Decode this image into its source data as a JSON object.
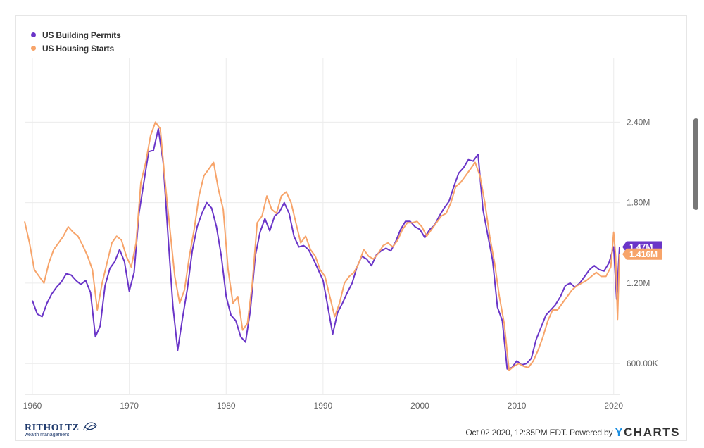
{
  "legend": [
    {
      "label": "US Building Permits",
      "color": "#6a35c8"
    },
    {
      "label": "US Housing Starts",
      "color": "#f7a46a"
    }
  ],
  "badges": [
    {
      "text": "1.47M",
      "value": 1.47,
      "color": "#6a35c8"
    },
    {
      "text": "1.416M",
      "value": 1.416,
      "color": "#f7a46a"
    }
  ],
  "footer": {
    "stamp": "Oct 02 2020, 12:35PM EDT.  Powered by",
    "brand_y": "Y",
    "brand_rest": "CHARTS",
    "logo_main": "RITHOLTZ",
    "logo_sub": "wealth management"
  },
  "chart_data": {
    "type": "line",
    "grid": true,
    "x_axis": {
      "ticks": [
        1960,
        1970,
        1980,
        1990,
        2000,
        2010,
        2020
      ],
      "range": [
        1959.2,
        2020.6
      ]
    },
    "y_axis": {
      "range": [
        0.37,
        2.88
      ],
      "ticks": [
        {
          "value": 0.6,
          "label": "600.00K"
        },
        {
          "value": 1.2,
          "label": "1.20M"
        },
        {
          "value": 1.8,
          "label": "1.80M"
        },
        {
          "value": 2.4,
          "label": "2.40M"
        }
      ],
      "unit": "millions"
    },
    "series": [
      {
        "name": "US Building Permits",
        "color": "#6a35c8",
        "x": [
          1960.0,
          1960.5,
          1961.0,
          1961.5,
          1962.0,
          1962.5,
          1963.0,
          1963.5,
          1964.0,
          1964.5,
          1965.0,
          1965.5,
          1966.0,
          1966.5,
          1967.0,
          1967.5,
          1968.0,
          1968.5,
          1969.0,
          1969.5,
          1970.0,
          1970.5,
          1971.0,
          1971.5,
          1972.0,
          1972.5,
          1973.0,
          1973.5,
          1974.0,
          1974.5,
          1975.0,
          1975.5,
          1976.0,
          1976.5,
          1977.0,
          1977.5,
          1978.0,
          1978.5,
          1979.0,
          1979.5,
          1980.0,
          1980.5,
          1981.0,
          1981.5,
          1982.0,
          1982.5,
          1983.0,
          1983.5,
          1984.0,
          1984.5,
          1985.0,
          1985.5,
          1986.0,
          1986.5,
          1987.0,
          1987.5,
          1988.0,
          1988.5,
          1989.0,
          1989.5,
          1990.0,
          1990.5,
          1991.0,
          1991.5,
          1992.0,
          1992.5,
          1993.0,
          1993.5,
          1994.0,
          1994.5,
          1995.0,
          1995.5,
          1996.0,
          1996.5,
          1997.0,
          1997.5,
          1998.0,
          1998.5,
          1999.0,
          1999.5,
          2000.0,
          2000.5,
          2001.0,
          2001.5,
          2002.0,
          2002.5,
          2003.0,
          2003.5,
          2004.0,
          2004.5,
          2005.0,
          2005.5,
          2006.0,
          2006.5,
          2007.0,
          2007.5,
          2008.0,
          2008.5,
          2009.0,
          2009.5,
          2010.0,
          2010.5,
          2011.0,
          2011.5,
          2012.0,
          2012.5,
          2013.0,
          2013.5,
          2014.0,
          2014.5,
          2015.0,
          2015.5,
          2016.0,
          2016.5,
          2017.0,
          2017.5,
          2018.0,
          2018.5,
          2019.0,
          2019.5,
          2020.0,
          2020.3,
          2020.6
        ],
        "values": [
          1.07,
          0.97,
          0.95,
          1.05,
          1.12,
          1.17,
          1.21,
          1.27,
          1.26,
          1.22,
          1.19,
          1.22,
          1.13,
          0.8,
          0.88,
          1.18,
          1.31,
          1.36,
          1.45,
          1.36,
          1.14,
          1.28,
          1.72,
          1.95,
          2.18,
          2.19,
          2.35,
          2.1,
          1.55,
          1.03,
          0.7,
          0.94,
          1.16,
          1.44,
          1.62,
          1.72,
          1.8,
          1.76,
          1.62,
          1.4,
          1.1,
          0.96,
          0.92,
          0.8,
          0.76,
          1.0,
          1.4,
          1.58,
          1.68,
          1.59,
          1.7,
          1.73,
          1.8,
          1.72,
          1.55,
          1.47,
          1.48,
          1.45,
          1.38,
          1.3,
          1.22,
          1.02,
          0.82,
          0.98,
          1.05,
          1.13,
          1.2,
          1.32,
          1.4,
          1.38,
          1.33,
          1.41,
          1.44,
          1.46,
          1.44,
          1.51,
          1.6,
          1.66,
          1.66,
          1.62,
          1.6,
          1.54,
          1.6,
          1.63,
          1.7,
          1.76,
          1.81,
          1.92,
          2.02,
          2.06,
          2.12,
          2.11,
          2.16,
          1.75,
          1.56,
          1.37,
          1.02,
          0.92,
          0.56,
          0.57,
          0.62,
          0.59,
          0.6,
          0.64,
          0.78,
          0.87,
          0.96,
          1.0,
          1.04,
          1.1,
          1.18,
          1.2,
          1.17,
          1.2,
          1.25,
          1.3,
          1.33,
          1.3,
          1.29,
          1.35,
          1.47,
          1.08,
          1.47
        ]
      },
      {
        "name": "US Housing Starts",
        "color": "#f7a46a",
        "x": [
          1959.2,
          1959.7,
          1960.2,
          1960.7,
          1961.2,
          1961.7,
          1962.2,
          1962.7,
          1963.2,
          1963.7,
          1964.2,
          1964.7,
          1965.2,
          1965.7,
          1966.2,
          1966.7,
          1967.2,
          1967.7,
          1968.2,
          1968.7,
          1969.2,
          1969.7,
          1970.2,
          1970.7,
          1971.2,
          1971.7,
          1972.2,
          1972.7,
          1973.2,
          1973.7,
          1974.2,
          1974.7,
          1975.2,
          1975.7,
          1976.2,
          1976.7,
          1977.2,
          1977.7,
          1978.2,
          1978.7,
          1979.2,
          1979.7,
          1980.2,
          1980.7,
          1981.2,
          1981.7,
          1982.2,
          1982.7,
          1983.2,
          1983.7,
          1984.2,
          1984.7,
          1985.2,
          1985.7,
          1986.2,
          1986.7,
          1987.2,
          1987.7,
          1988.2,
          1988.7,
          1989.2,
          1989.7,
          1990.2,
          1990.7,
          1991.2,
          1991.7,
          1992.2,
          1992.7,
          1993.2,
          1993.7,
          1994.2,
          1994.7,
          1995.2,
          1995.7,
          1996.2,
          1996.7,
          1997.2,
          1997.7,
          1998.2,
          1998.7,
          1999.2,
          1999.7,
          2000.2,
          2000.7,
          2001.2,
          2001.7,
          2002.2,
          2002.7,
          2003.2,
          2003.7,
          2004.2,
          2004.7,
          2005.2,
          2005.7,
          2006.2,
          2006.7,
          2007.2,
          2007.7,
          2008.2,
          2008.7,
          2009.2,
          2009.7,
          2010.2,
          2010.7,
          2011.2,
          2011.7,
          2012.2,
          2012.7,
          2013.2,
          2013.7,
          2014.2,
          2014.7,
          2015.2,
          2015.7,
          2016.2,
          2016.7,
          2017.2,
          2017.7,
          2018.2,
          2018.7,
          2019.2,
          2019.7,
          2020.0,
          2020.2,
          2020.4,
          2020.6
        ],
        "values": [
          1.66,
          1.5,
          1.3,
          1.25,
          1.2,
          1.35,
          1.45,
          1.5,
          1.55,
          1.62,
          1.58,
          1.55,
          1.48,
          1.4,
          1.3,
          1.0,
          1.2,
          1.35,
          1.5,
          1.55,
          1.52,
          1.4,
          1.32,
          1.5,
          1.95,
          2.1,
          2.3,
          2.4,
          2.35,
          1.95,
          1.6,
          1.25,
          1.05,
          1.15,
          1.4,
          1.6,
          1.85,
          2.0,
          2.05,
          2.1,
          1.9,
          1.75,
          1.3,
          1.05,
          1.1,
          0.85,
          0.9,
          1.2,
          1.65,
          1.7,
          1.85,
          1.75,
          1.72,
          1.85,
          1.88,
          1.8,
          1.65,
          1.5,
          1.55,
          1.45,
          1.4,
          1.3,
          1.25,
          1.1,
          0.95,
          1.05,
          1.2,
          1.25,
          1.28,
          1.35,
          1.45,
          1.4,
          1.38,
          1.42,
          1.48,
          1.5,
          1.47,
          1.52,
          1.6,
          1.65,
          1.65,
          1.66,
          1.62,
          1.55,
          1.6,
          1.65,
          1.7,
          1.72,
          1.8,
          1.92,
          1.95,
          2.0,
          2.05,
          2.1,
          2.0,
          1.8,
          1.55,
          1.35,
          1.1,
          0.9,
          0.55,
          0.58,
          0.6,
          0.58,
          0.57,
          0.62,
          0.7,
          0.8,
          0.92,
          1.0,
          1.0,
          1.05,
          1.1,
          1.15,
          1.18,
          1.2,
          1.22,
          1.25,
          1.28,
          1.25,
          1.25,
          1.32,
          1.58,
          1.4,
          0.93,
          1.42
        ]
      }
    ]
  }
}
